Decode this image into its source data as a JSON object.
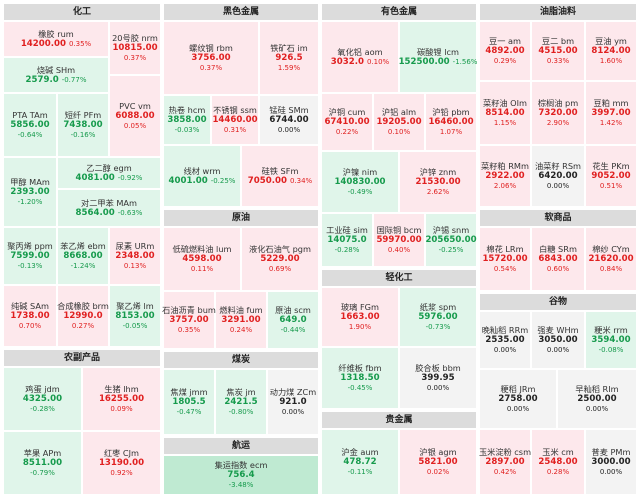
{
  "sections": {
    "chem": "化工",
    "black": "黑色金属",
    "nonferrous": "有色金属",
    "oil_fat": "油脂油料",
    "crude": "原油",
    "light": "轻化工",
    "soft": "软商品",
    "grain": "谷物",
    "agri": "农副产品",
    "coal": "煤炭",
    "shipping": "航运",
    "precious": "贵金属"
  },
  "cells": {
    "rubber": {
      "name": "橡胶 rum",
      "price": "14200.00",
      "pct": "0.35%"
    },
    "nr20": {
      "name": "20号胶 nrm",
      "price": "10815.00",
      "pct": "0.37%"
    },
    "soda": {
      "name": "烧碱 SHm",
      "price": "2579.0",
      "pct": "-0.77%"
    },
    "pta": {
      "name": "PTA TAm",
      "price": "5856.00",
      "pct": "-0.64%"
    },
    "pf": {
      "name": "短纤 PFm",
      "price": "7438.00",
      "pct": "-0.16%"
    },
    "pvc": {
      "name": "PVC vm",
      "price": "6088.00",
      "pct": "0.05%"
    },
    "ma": {
      "name": "甲醇 MAm",
      "price": "2393.00",
      "pct": "-1.20%"
    },
    "eg": {
      "name": "乙二醇 egm",
      "price": "4081.00",
      "pct": "-0.92%"
    },
    "px": {
      "name": "对二甲苯 MAm",
      "price": "8564.00",
      "pct": "-0.63%"
    },
    "pp": {
      "name": "聚丙烯 ppm",
      "price": "7599.00",
      "pct": "-0.13%"
    },
    "eb": {
      "name": "苯乙烯 ebm",
      "price": "8668.00",
      "pct": "-1.24%"
    },
    "ur": {
      "name": "尿素 URm",
      "price": "2348.00",
      "pct": "0.13%"
    },
    "sa": {
      "name": "纯碱 SAm",
      "price": "1738.00",
      "pct": "0.70%"
    },
    "br": {
      "name": "合成橡胶 brm",
      "price": "12990.0",
      "pct": "0.27%"
    },
    "l": {
      "name": "聚乙烯 lm",
      "price": "8153.00",
      "pct": "-0.05%"
    },
    "rb": {
      "name": "螺纹钢 rbm",
      "price": "3756.00",
      "pct": "0.37%"
    },
    "i": {
      "name": "铁矿石 im",
      "price": "926.5",
      "pct": "1.59%"
    },
    "hc": {
      "name": "热卷 hcm",
      "price": "3858.00",
      "pct": "-0.03%"
    },
    "ss": {
      "name": "不锈钢 ssm",
      "price": "14460.00",
      "pct": "0.31%"
    },
    "sm": {
      "name": "锰硅 SMm",
      "price": "6744.00",
      "pct": "0.00%"
    },
    "wr": {
      "name": "线材 wrm",
      "price": "4001.00",
      "pct": "-0.25%"
    },
    "sf": {
      "name": "硅铁 SFm",
      "price": "7050.00",
      "pct": "0.34%"
    },
    "ao": {
      "name": "氧化铝 aom",
      "price": "3032.0",
      "pct": "0.10%"
    },
    "lc": {
      "name": "碳酸锂 lcm",
      "price": "152500.00",
      "pct": "-1.56%"
    },
    "cu": {
      "name": "沪铜 cum",
      "price": "67410.00",
      "pct": "0.22%"
    },
    "al": {
      "name": "沪铝 alm",
      "price": "19205.00",
      "pct": "0.10%"
    },
    "pb": {
      "name": "沪铅 pbm",
      "price": "16460.00",
      "pct": "1.07%"
    },
    "ni": {
      "name": "沪镍 nim",
      "price": "140830.00",
      "pct": "-0.49%"
    },
    "zn": {
      "name": "沪锌 znm",
      "price": "21530.00",
      "pct": "2.62%"
    },
    "si": {
      "name": "工业硅 sim",
      "price": "14075.0",
      "pct": "-0.28%"
    },
    "bc": {
      "name": "国际铜 bcm",
      "price": "59970.00",
      "pct": "0.40%"
    },
    "sn": {
      "name": "沪锡 snm",
      "price": "205650.00",
      "pct": "-0.25%"
    },
    "a": {
      "name": "豆一 am",
      "price": "4892.00",
      "pct": "0.29%"
    },
    "b": {
      "name": "豆二 bm",
      "price": "4515.00",
      "pct": "0.33%"
    },
    "y": {
      "name": "豆油 ym",
      "price": "8124.00",
      "pct": "1.60%"
    },
    "oi": {
      "name": "菜籽油 OIm",
      "price": "8514.00",
      "pct": "1.15%"
    },
    "p": {
      "name": "棕榈油 pm",
      "price": "7320.00",
      "pct": "2.90%"
    },
    "m": {
      "name": "豆粕 mm",
      "price": "3997.00",
      "pct": "1.42%"
    },
    "rm": {
      "name": "菜籽粕 RMm",
      "price": "2922.00",
      "pct": "2.06%"
    },
    "rs": {
      "name": "油菜籽 RSm",
      "price": "6420.00",
      "pct": "0.00%"
    },
    "pk": {
      "name": "花生 PKm",
      "price": "9052.00",
      "pct": "0.51%"
    },
    "lu": {
      "name": "低硫燃料油 lum",
      "price": "4598.00",
      "pct": "0.11%"
    },
    "pg": {
      "name": "液化石油气 pgm",
      "price": "5229.00",
      "pct": "0.69%"
    },
    "bu": {
      "name": "石油沥青 bum",
      "price": "3757.00",
      "pct": "0.35%"
    },
    "fu": {
      "name": "燃料油 fum",
      "price": "3291.00",
      "pct": "0.24%"
    },
    "sc": {
      "name": "原油 scm",
      "price": "649.0",
      "pct": "-0.44%"
    },
    "fg": {
      "name": "玻璃 FGm",
      "price": "1663.00",
      "pct": "1.90%"
    },
    "sp": {
      "name": "纸浆 spm",
      "price": "5976.00",
      "pct": "-0.73%"
    },
    "fb": {
      "name": "纤维板 fbm",
      "price": "1318.50",
      "pct": "-0.45%"
    },
    "bb": {
      "name": "胶合板 bbm",
      "price": "399.95",
      "pct": "0.00%"
    },
    "lr": {
      "name": "棉花 LRm",
      "price": "15720.00",
      "pct": "0.54%"
    },
    "sr": {
      "name": "白糖 SRm",
      "price": "6843.00",
      "pct": "0.60%"
    },
    "cy": {
      "name": "棉纱 CYm",
      "price": "21620.00",
      "pct": "0.84%"
    },
    "rr": {
      "name": "晚籼稻 RRm",
      "price": "2535.00",
      "pct": "0.00%"
    },
    "wh": {
      "name": "强麦 WHm",
      "price": "3050.00",
      "pct": "0.00%"
    },
    "rr2": {
      "name": "粳米 rrm",
      "price": "3594.00",
      "pct": "-0.08%"
    },
    "jr": {
      "name": "粳稻 JRm",
      "price": "2758.00",
      "pct": "0.00%"
    },
    "ri": {
      "name": "早籼稻 RIm",
      "price": "2500.00",
      "pct": "0.00%"
    },
    "cs": {
      "name": "玉米淀粉 csm",
      "price": "2897.00",
      "pct": "0.42%"
    },
    "c": {
      "name": "玉米 cm",
      "price": "2548.00",
      "pct": "0.28%"
    },
    "pm": {
      "name": "普麦 PMm",
      "price": "3000.00",
      "pct": "0.00%"
    },
    "jd": {
      "name": "鸡蛋 jdm",
      "price": "4325.00",
      "pct": "-0.28%"
    },
    "lh": {
      "name": "生猪 lhm",
      "price": "16255.00",
      "pct": "0.09%"
    },
    "ap": {
      "name": "苹果 APm",
      "price": "8511.00",
      "pct": "-0.79%"
    },
    "cj": {
      "name": "红枣 CJm",
      "price": "13190.00",
      "pct": "0.92%"
    },
    "j": {
      "name": "焦煤 jmm",
      "price": "1805.5",
      "pct": "-0.47%"
    },
    "jt": {
      "name": "焦炭 jm",
      "price": "2421.5",
      "pct": "-0.80%"
    },
    "zc": {
      "name": "动力煤 ZCm",
      "price": "921.0",
      "pct": "0.00%"
    },
    "ec": {
      "name": "集运指数 ecm",
      "price": "756.4",
      "pct": "-3.48%"
    },
    "au": {
      "name": "沪金 aum",
      "price": "478.72",
      "pct": "-0.11%"
    },
    "ag": {
      "name": "沪银 agm",
      "price": "5821.00",
      "pct": "0.02%"
    }
  }
}
